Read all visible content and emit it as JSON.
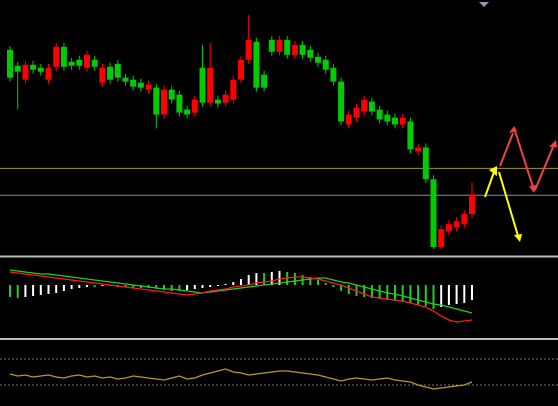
{
  "chart_data": [
    {
      "type": "candlestick",
      "ylim": [
        0,
        255
      ],
      "up_color": "#ff0000",
      "down_color": "#00cc00",
      "levels": [
        {
          "value": 86,
          "color": "#a09a20"
        },
        {
          "value": 59,
          "color": "#8c8c8c"
        }
      ],
      "open": [
        205,
        189,
        175,
        190,
        187,
        175,
        188,
        208,
        193,
        195,
        187,
        195,
        172,
        188,
        191,
        177,
        175,
        172,
        165,
        167,
        140,
        165,
        160,
        145,
        142,
        187,
        152,
        155,
        152,
        155,
        175,
        195,
        213,
        180,
        215,
        203,
        215,
        200,
        210,
        205,
        198,
        195,
        187,
        173,
        130,
        137,
        143,
        153,
        145,
        140,
        137,
        130,
        133,
        103,
        107,
        75,
        7,
        23,
        27,
        30,
        40
      ],
      "high": [
        209,
        193,
        194,
        194,
        191,
        191,
        212,
        212,
        197,
        199,
        204,
        199,
        191,
        192,
        195,
        181,
        179,
        176,
        174,
        171,
        169,
        169,
        164,
        149,
        159,
        210,
        212,
        159,
        164,
        179,
        199,
        240,
        217,
        184,
        219,
        219,
        219,
        214,
        214,
        209,
        202,
        199,
        191,
        177,
        144,
        151,
        159,
        157,
        149,
        144,
        141,
        141,
        137,
        111,
        111,
        79,
        29,
        34,
        37,
        44,
        72
      ],
      "low": [
        173,
        145,
        171,
        181,
        179,
        171,
        184,
        184,
        185,
        185,
        183,
        184,
        168,
        171,
        173,
        169,
        164,
        163,
        161,
        126,
        136,
        151,
        138,
        136,
        138,
        148,
        148,
        147,
        148,
        151,
        171,
        191,
        163,
        163,
        199,
        199,
        196,
        196,
        196,
        193,
        188,
        181,
        169,
        129,
        126,
        133,
        139,
        139,
        131,
        129,
        126,
        126,
        101,
        99,
        71,
        5,
        5,
        19,
        23,
        26,
        36
      ],
      "close": [
        177,
        183,
        190,
        185,
        183,
        187,
        208,
        188,
        189,
        189,
        200,
        188,
        187,
        175,
        177,
        173,
        168,
        167,
        170,
        140,
        165,
        155,
        142,
        140,
        155,
        152,
        187,
        151,
        160,
        175,
        195,
        215,
        167,
        167,
        203,
        215,
        200,
        210,
        200,
        197,
        192,
        185,
        173,
        133,
        140,
        147,
        155,
        143,
        135,
        133,
        130,
        137,
        105,
        107,
        75,
        7,
        25,
        30,
        33,
        40,
        60
      ]
    },
    {
      "type": "macd",
      "ylim": [
        -53,
        27
      ],
      "up_color": "#ffffff",
      "down_color": "#22cc22",
      "histogram": [
        -12,
        -13,
        -12,
        -11,
        -10,
        -9,
        -8,
        -6,
        -4,
        -3,
        -2,
        -2,
        -1,
        -1,
        -2,
        -2,
        -3,
        -3,
        -3,
        -4,
        -5,
        -6,
        -6,
        -5,
        -4,
        -3,
        -2,
        -1,
        1,
        3,
        6,
        10,
        12,
        12,
        13,
        14,
        13,
        12,
        10,
        8,
        5,
        2,
        -2,
        -6,
        -9,
        -11,
        -12,
        -13,
        -14,
        -15,
        -16,
        -17,
        -18,
        -20,
        -21,
        -24,
        -22,
        -20,
        -19,
        -18,
        -15
      ],
      "series": [
        {
          "color": "#22cc22",
          "values": [
            15,
            14,
            13,
            12,
            11,
            11,
            10,
            9,
            8,
            7,
            6,
            5,
            4,
            3,
            2,
            1,
            0,
            -1,
            -2,
            -3,
            -4,
            -4,
            -5,
            -6,
            -7,
            -8,
            -7,
            -6,
            -5,
            -4,
            -3,
            -2,
            -1,
            0,
            1,
            2,
            3,
            4,
            5,
            6,
            7,
            7,
            5,
            3,
            2,
            0,
            -2,
            -4,
            -6,
            -8,
            -9,
            -11,
            -13,
            -15,
            -17,
            -19,
            -20,
            -22,
            -24,
            -26,
            -28
          ]
        },
        {
          "color": "#ff1a1a",
          "values": [
            13,
            12,
            11,
            10,
            9,
            8,
            7,
            6,
            5,
            4,
            3,
            2,
            1,
            0,
            -1,
            -2,
            -3,
            -4,
            -5,
            -6,
            -7,
            -8,
            -9,
            -10,
            -9,
            -8,
            -6,
            -5,
            -4,
            -2,
            -1,
            0,
            2,
            3,
            4,
            6,
            7,
            8,
            8,
            7,
            6,
            4,
            2,
            0,
            -3,
            -6,
            -9,
            -12,
            -13,
            -14,
            -15,
            -16,
            -18,
            -20,
            -22,
            -26,
            -31,
            -35,
            -37,
            -36,
            -35
          ]
        }
      ]
    },
    {
      "type": "line",
      "ylim": [
        0,
        66
      ],
      "levels": [
        {
          "value": 47,
          "color": "#777777"
        },
        {
          "value": 21,
          "color": "#777777"
        }
      ],
      "series": [
        {
          "color": "#b8982a",
          "values": [
            32,
            30,
            31,
            29,
            30,
            31,
            29,
            28,
            30,
            31,
            29,
            30,
            28,
            29,
            27,
            28,
            30,
            29,
            28,
            27,
            26,
            28,
            30,
            27,
            28,
            31,
            33,
            35,
            37,
            34,
            33,
            31,
            32,
            33,
            34,
            35,
            35,
            34,
            33,
            32,
            31,
            29,
            27,
            25,
            27,
            28,
            27,
            26,
            27,
            28,
            26,
            25,
            24,
            21,
            19,
            17,
            18,
            19,
            20,
            21,
            24
          ]
        }
      ]
    }
  ]
}
